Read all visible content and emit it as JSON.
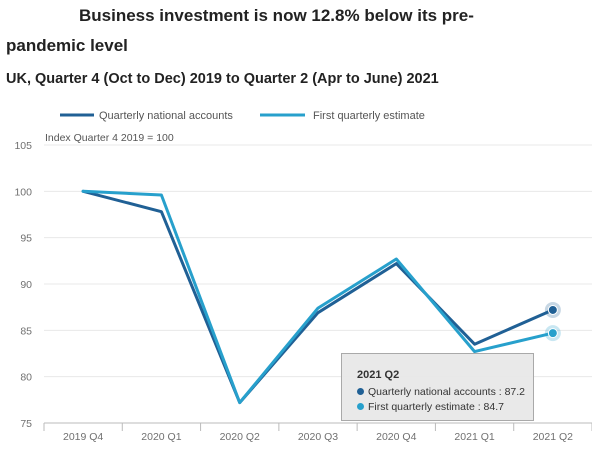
{
  "title_line1": "Business investment is now 12.8% below its pre-",
  "title_line2": "pandemic level",
  "subtitle": "UK, Quarter 4 (Oct to Dec) 2019 to Quarter 2 (Apr to June) 2021",
  "colors": {
    "quarterly_national_accounts": "#206095",
    "first_quarterly_estimate": "#27a0cc",
    "gridline": "#e8e8e8",
    "axis": "#bbbbbb"
  },
  "chart_data": {
    "type": "line",
    "title": "Business investment is now 12.8% below its pre-pandemic level",
    "subtitle": "UK, Quarter 4 (Oct to Dec) 2019 to Quarter 2 (Apr to June) 2021",
    "unit_label": "Index Quarter 4 2019 = 100",
    "categories": [
      "2019 Q4",
      "2020 Q1",
      "2020 Q2",
      "2020 Q3",
      "2020 Q4",
      "2021 Q1",
      "2021 Q2"
    ],
    "series": [
      {
        "name": "Quarterly national accounts",
        "color": "#206095",
        "values": [
          100,
          97.8,
          77.2,
          86.9,
          92.2,
          83.5,
          87.2
        ]
      },
      {
        "name": "First quarterly estimate",
        "color": "#27a0cc",
        "values": [
          100,
          99.6,
          77.2,
          87.4,
          92.7,
          82.7,
          84.7
        ]
      }
    ],
    "y_ticks": [
      75,
      80,
      85,
      90,
      95,
      100,
      105
    ],
    "ylim": [
      75,
      105
    ],
    "grid": true,
    "legend_position": "top",
    "tooltip": {
      "title": "2021 Q2",
      "rows": [
        {
          "text": "Quarterly national accounts : 87.2",
          "color": "#206095"
        },
        {
          "text": "First quarterly estimate : 84.7",
          "color": "#27a0cc"
        }
      ]
    }
  }
}
